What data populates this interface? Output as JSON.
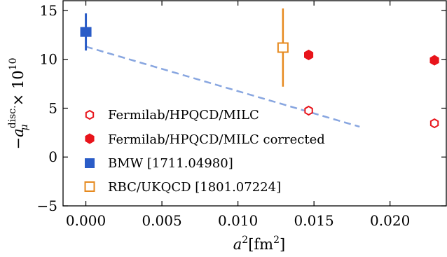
{
  "chart_data": {
    "type": "scatter",
    "xlabel": {
      "base": "a",
      "sup": "2",
      "unit_open": "[fm",
      "unit_sup": "2",
      "unit_close": "]"
    },
    "ylabel": {
      "minus": "−",
      "base": "a",
      "sub": "μ",
      "sup": "disc.",
      "times": "× 10",
      "exp": "10"
    },
    "xlim": [
      -0.0015,
      0.0237
    ],
    "ylim": [
      -5,
      16
    ],
    "xticks": [
      0.0,
      0.005,
      0.01,
      0.015,
      0.02
    ],
    "xtick_labels": [
      "0.000",
      "0.005",
      "0.010",
      "0.015",
      "0.020"
    ],
    "yticks": [
      -5,
      0,
      5,
      10,
      15
    ],
    "ytick_labels": [
      "−5",
      "0",
      "5",
      "10",
      "15"
    ],
    "grid": false,
    "legend_position": "lower-left",
    "series": [
      {
        "name": "Fermilab/HPQCD/MILC",
        "marker": "open-hexagon",
        "color": "#e8141b",
        "points": [
          {
            "x": 0.01465,
            "y": 4.75,
            "yerr": 0.35
          },
          {
            "x": 0.02292,
            "y": 3.45,
            "yerr": 0.35
          }
        ]
      },
      {
        "name": "Fermilab/HPQCD/MILC corrected",
        "marker": "filled-hexagon",
        "color": "#e8141b",
        "points": [
          {
            "x": 0.01465,
            "y": 10.45,
            "yerr": 0.3
          },
          {
            "x": 0.02292,
            "y": 9.9,
            "yerr": 0.3
          }
        ]
      },
      {
        "name": "BMW [1711.04980]",
        "marker": "filled-square",
        "color": "#2a5cc7",
        "points": [
          {
            "x": 0.0,
            "y": 12.8,
            "yerr": 1.9
          }
        ]
      },
      {
        "name": "RBC/UKQCD [1801.07224]",
        "marker": "open-square",
        "color": "#e68a1f",
        "points": [
          {
            "x": 0.01296,
            "y": 11.2,
            "yerr": 4.0
          }
        ]
      }
    ],
    "fit_line": {
      "color": "#88a6e0",
      "style": "dashed",
      "x": [
        0.0,
        0.018
      ],
      "y": [
        11.3,
        3.1
      ]
    }
  }
}
